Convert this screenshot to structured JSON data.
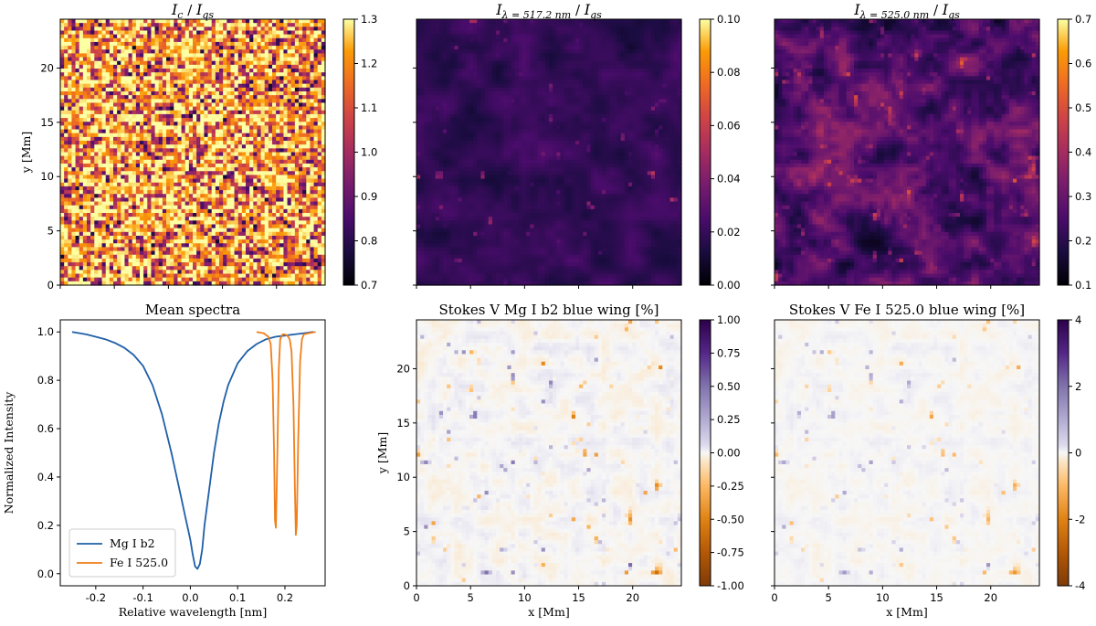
{
  "chart_data": [
    {
      "id": "continuum",
      "type": "heatmap",
      "title": "I_c / I_qs",
      "title_parts": {
        "main": "I",
        "sub": "c",
        "mid": " / ",
        "main2": "I",
        "sub2": "qs"
      },
      "ylabel": "y [Mm]",
      "xlim": [
        0,
        24.5
      ],
      "ylim": [
        0,
        24.5
      ],
      "yticks": [
        "0",
        "5",
        "10",
        "15",
        "20"
      ],
      "colormap": "inferno",
      "colorbar": {
        "range": [
          0.7,
          1.3
        ],
        "ticks": [
          "0.7",
          "0.8",
          "0.9",
          "1.0",
          "1.1",
          "1.2",
          "1.3"
        ]
      },
      "pattern": "granulation"
    },
    {
      "id": "mg-core",
      "type": "heatmap",
      "title": "I_λ=517.2nm / I_qs",
      "title_parts": {
        "main": "I",
        "sub": "λ = 517.2 nm",
        "mid": " / ",
        "main2": "I",
        "sub2": "qs"
      },
      "xlim": [
        0,
        24.5
      ],
      "ylim": [
        0,
        24.5
      ],
      "colormap": "inferno",
      "colorbar": {
        "range": [
          0.0,
          0.1
        ],
        "ticks": [
          "0.00",
          "0.02",
          "0.04",
          "0.06",
          "0.08",
          "0.10"
        ]
      },
      "pattern": "dark"
    },
    {
      "id": "fe-core",
      "type": "heatmap",
      "title": "I_λ=525.0nm / I_qs",
      "title_parts": {
        "main": "I",
        "sub": "λ = 525.0 nm",
        "mid": " / ",
        "main2": "I",
        "sub2": "qs"
      },
      "xlim": [
        0,
        24.5
      ],
      "ylim": [
        0,
        24.5
      ],
      "colormap": "inferno",
      "colorbar": {
        "range": [
          0.1,
          0.7
        ],
        "ticks": [
          "0.1",
          "0.2",
          "0.3",
          "0.4",
          "0.5",
          "0.6",
          "0.7"
        ]
      },
      "pattern": "mid"
    },
    {
      "id": "mean-spectra",
      "type": "line",
      "title": "Mean spectra",
      "xlabel": "Relative wavelength [nm]",
      "ylabel": "Normalized Intensity",
      "xlim": [
        -0.275,
        0.285
      ],
      "ylim": [
        -0.05,
        1.05
      ],
      "xticks": [
        -0.2,
        -0.1,
        0.0,
        0.1,
        0.2
      ],
      "xtick_labels": [
        "-0.2",
        "-0.1",
        "0.0",
        "0.1",
        "0.2"
      ],
      "yticks": [
        0.0,
        0.2,
        0.4,
        0.6,
        0.8,
        1.0
      ],
      "ytick_labels": [
        "0.0",
        "0.2",
        "0.4",
        "0.6",
        "0.8",
        "1.0"
      ],
      "legend": "lower-left",
      "series": [
        {
          "name": "Mg I b2",
          "color": "#1f5fa8",
          "x": [
            -0.25,
            -0.22,
            -0.2,
            -0.18,
            -0.16,
            -0.14,
            -0.12,
            -0.1,
            -0.08,
            -0.06,
            -0.05,
            -0.04,
            -0.03,
            -0.02,
            -0.01,
            0.0,
            0.005,
            0.01,
            0.015,
            0.02,
            0.025,
            0.03,
            0.04,
            0.05,
            0.06,
            0.07,
            0.08,
            0.1,
            0.12,
            0.14,
            0.16,
            0.18,
            0.2,
            0.22,
            0.24,
            0.26
          ],
          "y": [
            1.0,
            0.99,
            0.98,
            0.97,
            0.955,
            0.935,
            0.905,
            0.86,
            0.78,
            0.66,
            0.58,
            0.5,
            0.41,
            0.32,
            0.23,
            0.14,
            0.08,
            0.03,
            0.02,
            0.04,
            0.1,
            0.2,
            0.35,
            0.5,
            0.62,
            0.71,
            0.78,
            0.87,
            0.92,
            0.95,
            0.97,
            0.98,
            0.985,
            0.99,
            0.995,
            1.0
          ]
        },
        {
          "name": "Fe I 525.0",
          "color": "#f07f1a",
          "x": [
            0.14,
            0.155,
            0.165,
            0.17,
            0.174,
            0.177,
            0.179,
            0.181,
            0.184,
            0.187,
            0.19,
            0.195,
            0.2,
            0.205,
            0.21,
            0.214,
            0.218,
            0.221,
            0.223,
            0.225,
            0.228,
            0.232,
            0.236,
            0.24,
            0.25,
            0.265
          ],
          "y": [
            1.0,
            0.995,
            0.98,
            0.95,
            0.8,
            0.5,
            0.22,
            0.19,
            0.5,
            0.85,
            0.97,
            0.99,
            0.99,
            0.985,
            0.97,
            0.92,
            0.7,
            0.35,
            0.16,
            0.2,
            0.55,
            0.88,
            0.97,
            0.99,
            0.995,
            1.0
          ]
        }
      ]
    },
    {
      "id": "stokes-mg",
      "type": "heatmap",
      "title": "Stokes V Mg I b2 blue wing [%]",
      "xlabel": "x [Mm]",
      "ylabel": "y [Mm]",
      "xlim": [
        0,
        24.5
      ],
      "ylim": [
        0,
        24.5
      ],
      "xticks": [
        "0",
        "5",
        "10",
        "15",
        "20"
      ],
      "yticks": [
        "0",
        "5",
        "10",
        "15",
        "20"
      ],
      "colormap": "PuOr",
      "colorbar": {
        "range": [
          -1.0,
          1.0
        ],
        "ticks": [
          "-1.00",
          "-0.75",
          "-0.50",
          "-0.25",
          "0.00",
          "0.25",
          "0.50",
          "0.75",
          "1.00"
        ]
      },
      "pattern": "stokes-strong"
    },
    {
      "id": "stokes-fe",
      "type": "heatmap",
      "title": "Stokes V Fe I 525.0 blue wing [%]",
      "xlabel": "x [Mm]",
      "xlim": [
        0,
        24.5
      ],
      "ylim": [
        0,
        24.5
      ],
      "xticks": [
        "0",
        "5",
        "10",
        "15",
        "20"
      ],
      "colormap": "PuOr",
      "colorbar": {
        "range": [
          -5,
          5
        ],
        "ticks": [
          "-4",
          "-2",
          "0",
          "2",
          "4"
        ]
      },
      "pattern": "stokes-weak"
    }
  ]
}
